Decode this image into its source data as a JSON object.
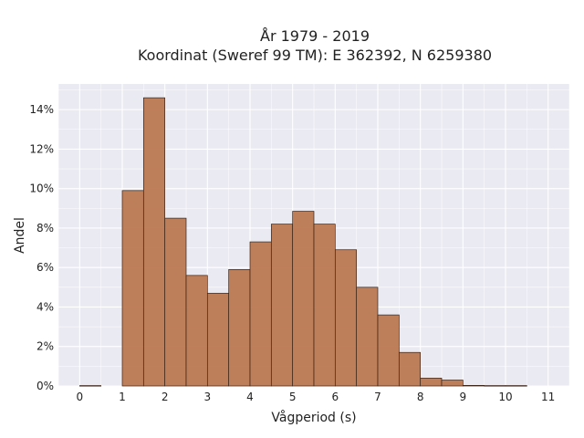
{
  "chart_data": {
    "type": "bar",
    "title": "År 1979 - 2019",
    "subtitle": "Koordinat (Sweref 99 TM): E 362392, N 6259380",
    "xlabel": "Vågperiod (s)",
    "ylabel": "Andel",
    "xlim": [
      -0.5,
      11.5
    ],
    "ylim": [
      0,
      15.3
    ],
    "x_ticks": [
      0,
      1,
      2,
      3,
      4,
      5,
      6,
      7,
      8,
      9,
      10,
      11
    ],
    "y_ticks": [
      0,
      2,
      4,
      6,
      8,
      10,
      12,
      14
    ],
    "y_tick_labels": [
      "0%",
      "2%",
      "4%",
      "6%",
      "8%",
      "10%",
      "12%",
      "14%"
    ],
    "bin_width": 0.5,
    "bins": [
      {
        "start": 0.0,
        "value": 0.02
      },
      {
        "start": 1.0,
        "value": 9.9
      },
      {
        "start": 1.5,
        "value": 14.6
      },
      {
        "start": 2.0,
        "value": 8.5
      },
      {
        "start": 2.5,
        "value": 5.6
      },
      {
        "start": 3.0,
        "value": 4.7
      },
      {
        "start": 3.5,
        "value": 5.9
      },
      {
        "start": 4.0,
        "value": 7.3
      },
      {
        "start": 4.5,
        "value": 8.2
      },
      {
        "start": 5.0,
        "value": 8.85
      },
      {
        "start": 5.5,
        "value": 8.2
      },
      {
        "start": 6.0,
        "value": 6.9
      },
      {
        "start": 6.5,
        "value": 5.0
      },
      {
        "start": 7.0,
        "value": 3.6
      },
      {
        "start": 7.5,
        "value": 1.7
      },
      {
        "start": 8.0,
        "value": 0.4
      },
      {
        "start": 8.5,
        "value": 0.3
      },
      {
        "start": 9.0,
        "value": 0.03
      },
      {
        "start": 9.5,
        "value": 0.02
      },
      {
        "start": 10.0,
        "value": 0.02
      }
    ],
    "bar_color": "#bb7851",
    "bar_edge_color": "#3a2418",
    "background_color": "#eaeaf2",
    "grid": true,
    "grid_color": "#ffffff"
  }
}
